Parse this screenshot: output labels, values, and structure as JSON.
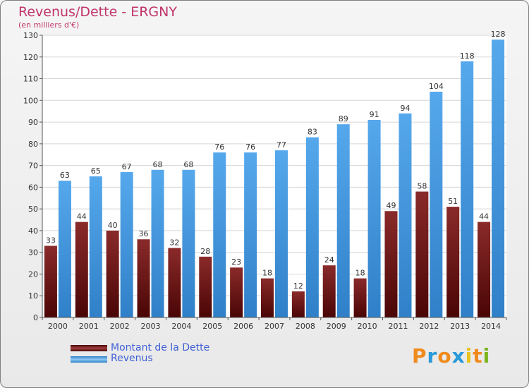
{
  "title": "Revenus/Dette - ERGNY",
  "subtitle": "(en milliers d'€)",
  "chart_data": {
    "type": "bar",
    "title": "Revenus/Dette - ERGNY",
    "subtitle": "(en milliers d'€)",
    "categories": [
      "2000",
      "2001",
      "2002",
      "2003",
      "2004",
      "2005",
      "2006",
      "2007",
      "2008",
      "2009",
      "2010",
      "2011",
      "2012",
      "2013",
      "2014"
    ],
    "series": [
      {
        "name": "Montant de la Dette",
        "values": [
          33,
          44,
          40,
          36,
          32,
          28,
          23,
          18,
          12,
          24,
          18,
          49,
          58,
          51,
          44
        ]
      },
      {
        "name": "Revenus",
        "values": [
          63,
          65,
          67,
          68,
          68,
          76,
          76,
          77,
          83,
          89,
          91,
          94,
          104,
          118,
          128
        ]
      }
    ],
    "ylim": [
      0,
      130
    ],
    "yticks": [
      "0",
      "10",
      "20",
      "30",
      "40",
      "50",
      "60",
      "70",
      "80",
      "90",
      "100",
      "110",
      "120",
      "130"
    ],
    "grid": true,
    "legend_position": "bottom-left"
  },
  "legend": [
    {
      "label": "Montant de la Dette",
      "color": "#6b1212"
    },
    {
      "label": "Revenus",
      "color": "#4a9de0"
    }
  ],
  "logo": {
    "letters": [
      "P",
      "r",
      "o",
      "x",
      "i",
      "t",
      "i"
    ],
    "colors": [
      "#f08a1c",
      "#2a9ad8",
      "#f08a1c",
      "#2a9ad8",
      "#e8c31b",
      "#f08a1c",
      "#7ab51d"
    ]
  },
  "colors": {
    "debt": "#7a1a1a",
    "revenue": "#3d93dc",
    "title": "#c0356b",
    "legend_text": "#3f5fd6"
  }
}
